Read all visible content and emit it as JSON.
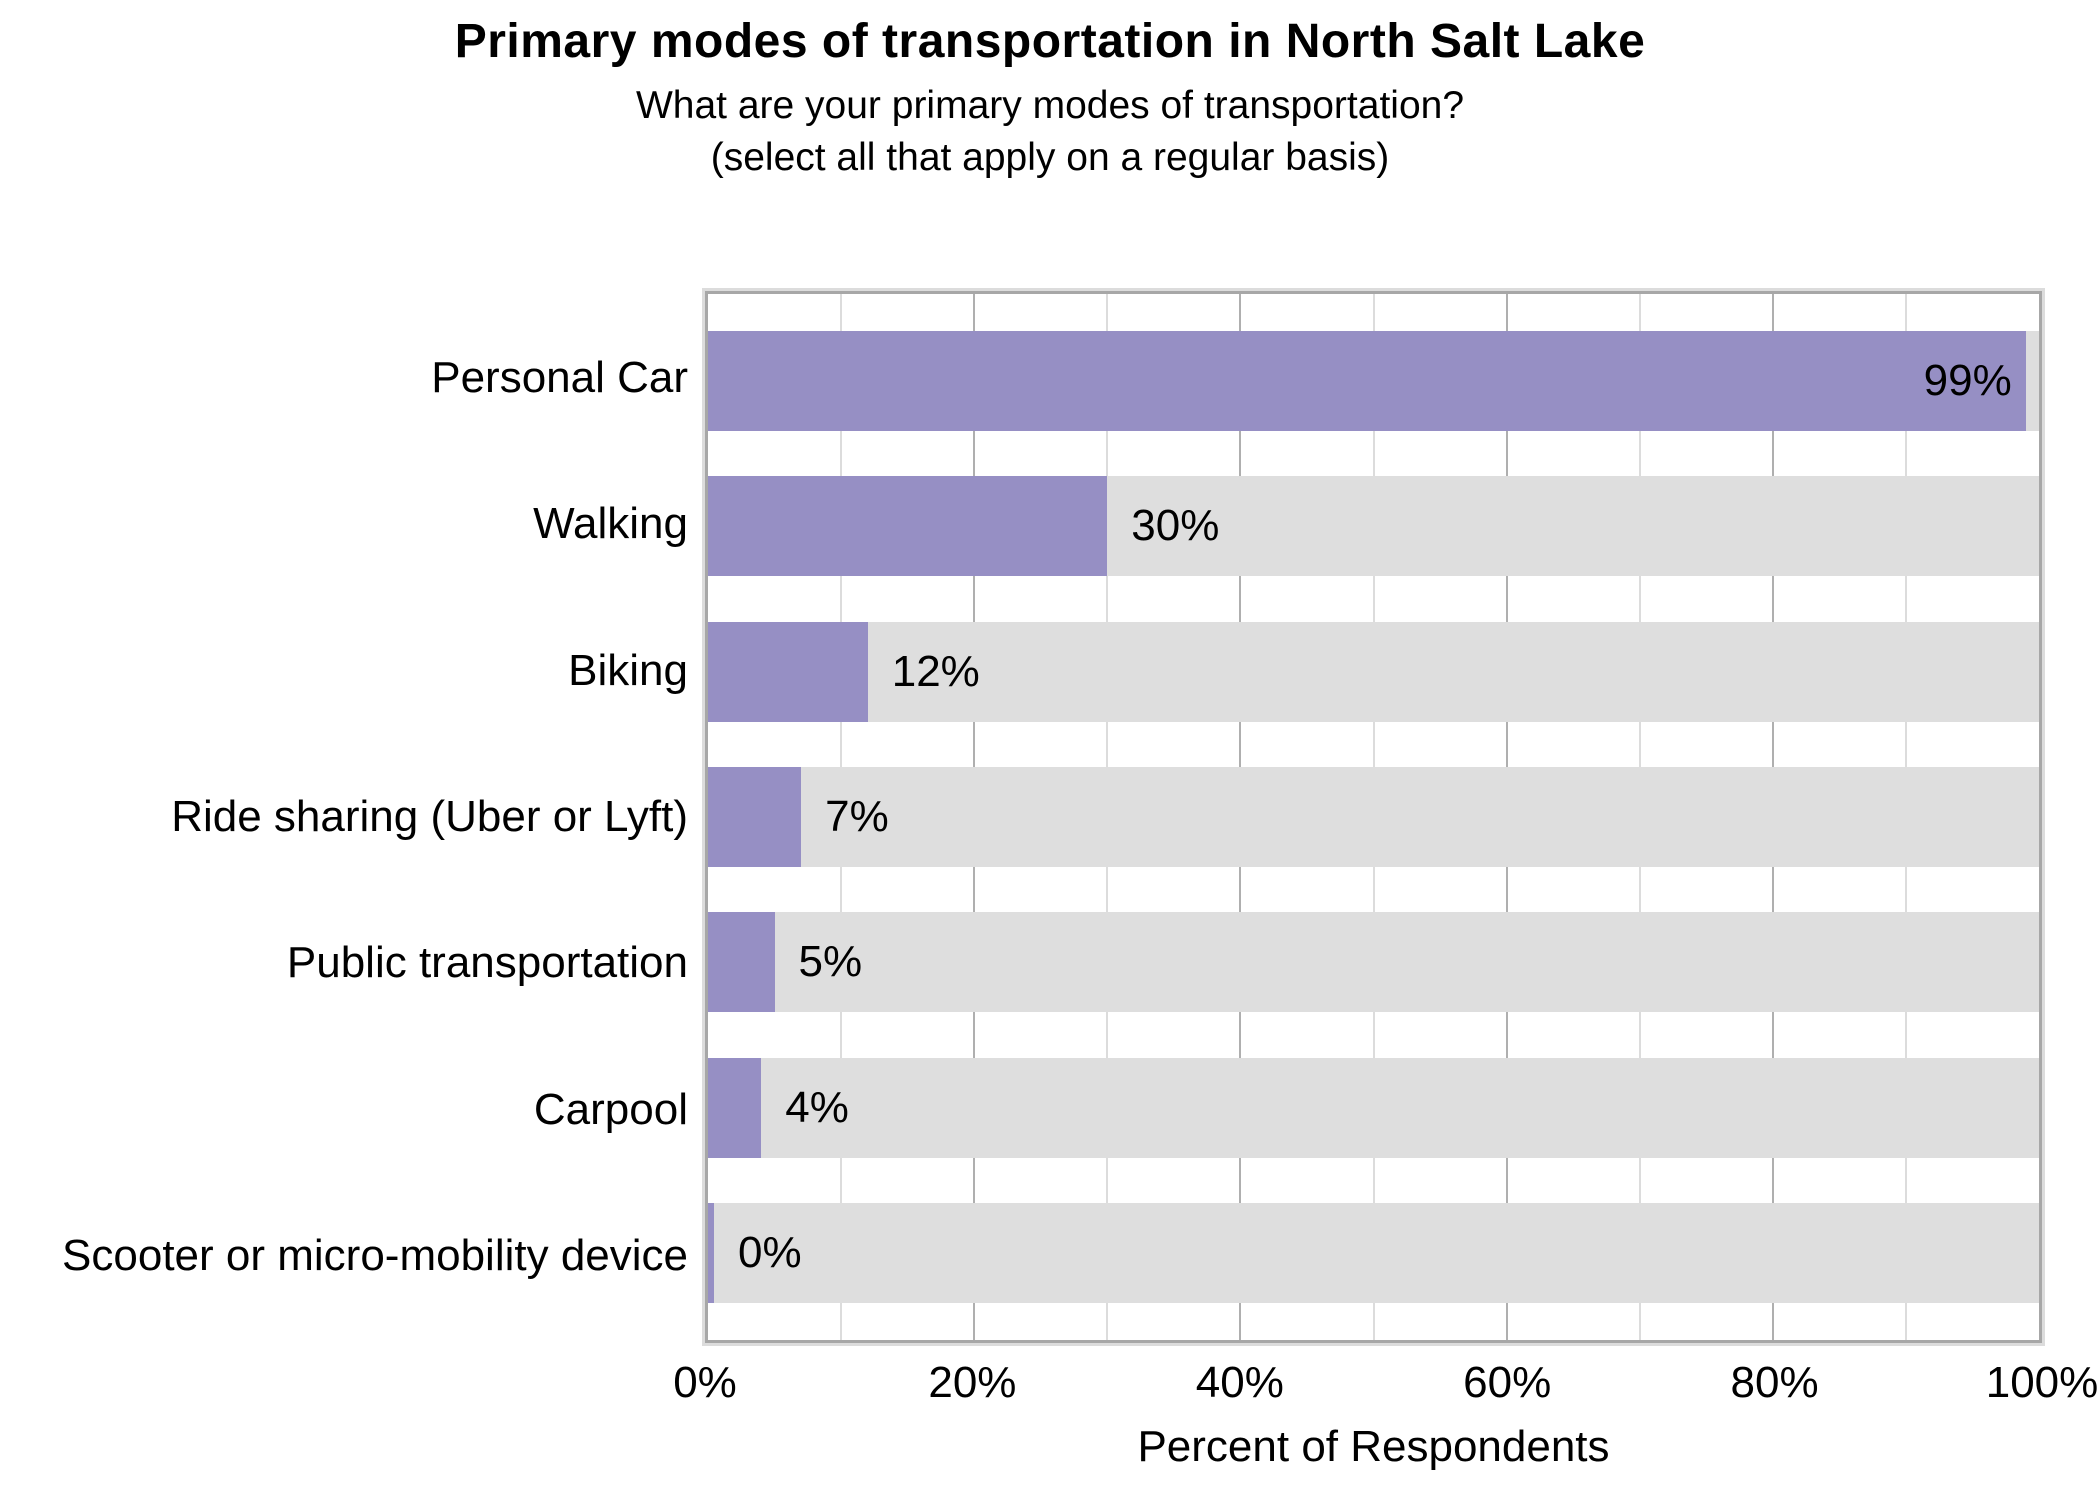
{
  "chart_data": {
    "type": "bar",
    "orientation": "horizontal",
    "title": "Primary modes of transportation in North Salt Lake",
    "subtitle_lines": [
      "What are your primary modes of transportation?",
      "(select all that apply on a regular basis)"
    ],
    "categories": [
      "Personal Car",
      "Walking",
      "Biking",
      "Ride sharing (Uber or Lyft)",
      "Public transportation",
      "Carpool",
      "Scooter or micro-mobility device"
    ],
    "values": [
      99,
      30,
      12,
      7,
      5,
      4,
      0
    ],
    "value_labels": [
      "99%",
      "30%",
      "12%",
      "7%",
      "5%",
      "4%",
      "0%"
    ],
    "xlabel": "Percent of Respondents",
    "xlim": [
      0,
      100
    ],
    "xtick_values": [
      0,
      20,
      40,
      60,
      80,
      100
    ],
    "xtick_labels": [
      "0%",
      "20%",
      "40%",
      "60%",
      "80%",
      "100%"
    ],
    "grid": {
      "grid_on": true,
      "minor_every": 10,
      "major_every": 20
    },
    "legend": "none",
    "colors": {
      "bar": "#968FC4",
      "track": "#DEDEDE",
      "grid_minor": "#DCDCDC",
      "grid_major": "#AFAFAF",
      "plot_border": "#A7A7A7",
      "text": "#000000",
      "background": "#FFFFFF"
    }
  }
}
